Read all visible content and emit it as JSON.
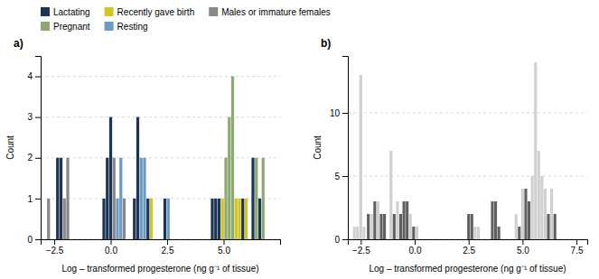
{
  "chart_data": [
    {
      "type": "bar",
      "title": "a)",
      "xlabel": "Log – transformed progesterone (ng g⁻¹ of tissue)",
      "ylabel": "Count",
      "series": [
        {
          "name": "Lactating",
          "color": "#1c3557",
          "x": [
            -2.35,
            -2.2,
            -0.3,
            -0.15,
            0.0,
            1.05,
            1.2,
            1.65,
            2.4,
            4.5,
            4.65,
            4.8,
            5.85,
            6.3,
            6.6
          ],
          "values": [
            2,
            2,
            1,
            2,
            3,
            1,
            3,
            1,
            1,
            1,
            1,
            1,
            1,
            2,
            1
          ]
        },
        {
          "name": "Recently gave birth",
          "color": "#d4c424",
          "x": [
            1.8,
            4.95,
            5.55,
            5.7,
            6.0
          ],
          "values": [
            1,
            1,
            1,
            1,
            1
          ]
        },
        {
          "name": "Males or immature females",
          "color": "#888888",
          "x": [
            -2.75,
            -2.05,
            -1.9,
            0.15,
            0.6
          ],
          "values": [
            1,
            1,
            2,
            2,
            1
          ]
        },
        {
          "name": "Pregnant",
          "color": "#8aaa72",
          "x": [
            5.1,
            5.25,
            5.4,
            6.45,
            6.75
          ],
          "values": [
            2,
            3,
            4,
            2,
            2
          ]
        },
        {
          "name": "Resting",
          "color": "#6b9bc3",
          "x": [
            0.3,
            0.45,
            1.35,
            1.5,
            2.55
          ],
          "values": [
            1,
            2,
            2,
            2,
            1
          ]
        }
      ],
      "xlim": [
        -3.1,
        7.5
      ],
      "ylim": [
        0,
        4.5
      ],
      "xticks": [
        {
          "value": -2.5,
          "label": "−2.5"
        },
        {
          "value": 0,
          "label": "0.0"
        },
        2.5,
        {
          "value": 5,
          "label": "5.0"
        }
      ],
      "yticks": [
        0,
        1,
        2,
        3,
        4
      ],
      "grid": true,
      "legend": "top"
    },
    {
      "type": "bar",
      "title": "b)",
      "xlabel": "Log – transformed progesterone (ng g⁻¹ of tissue)",
      "ylabel": "Count",
      "x": [
        -2.8,
        -2.65,
        -2.5,
        -2.35,
        -2.15,
        -2.0,
        -1.85,
        -1.7,
        -1.55,
        -1.4,
        -1.1,
        -0.95,
        -0.8,
        -0.65,
        -0.5,
        -0.35,
        -0.2,
        -0.05,
        0.1,
        2.5,
        2.65,
        2.8,
        2.95,
        3.6,
        3.75,
        3.9,
        4.7,
        4.85,
        5.0,
        5.15,
        5.3,
        5.45,
        5.6,
        5.75,
        5.9,
        6.05,
        6.2,
        6.35,
        6.5
      ],
      "values": [
        1,
        1,
        13,
        1,
        2,
        2,
        3,
        3,
        2,
        2,
        7,
        2,
        3,
        2,
        3,
        3,
        2,
        1,
        1,
        2,
        2,
        1,
        1,
        3,
        3,
        1,
        2,
        1,
        4,
        4,
        3,
        5,
        14,
        7,
        5,
        4,
        2,
        4,
        2
      ],
      "colors": [
        "#d0d0d0",
        "#d0d0d0",
        "#d0d0d0",
        "#d0d0d0",
        "#606060",
        "#d0d0d0",
        "#606060",
        "#d0d0d0",
        "#606060",
        "#606060",
        "#d0d0d0",
        "#606060",
        "#d0d0d0",
        "#606060",
        "#606060",
        "#606060",
        "#d0d0d0",
        "#606060",
        "#d0d0d0",
        "#606060",
        "#606060",
        "#d0d0d0",
        "#d0d0d0",
        "#606060",
        "#606060",
        "#606060",
        "#d0d0d0",
        "#606060",
        "#d0d0d0",
        "#606060",
        "#606060",
        "#d0d0d0",
        "#d0d0d0",
        "#d0d0d0",
        "#d0d0d0",
        "#d0d0d0",
        "#606060",
        "#d0d0d0",
        "#606060"
      ],
      "xlim": [
        -3.1,
        8.0
      ],
      "ylim": [
        0,
        14.5
      ],
      "xticks": [
        {
          "value": -2.5,
          "label": "−2.5"
        },
        {
          "value": 0,
          "label": "0.0"
        },
        2.5,
        {
          "value": 5,
          "label": "5.0"
        },
        7.5
      ],
      "yticks": [
        0,
        5,
        10
      ],
      "grid": true
    }
  ]
}
